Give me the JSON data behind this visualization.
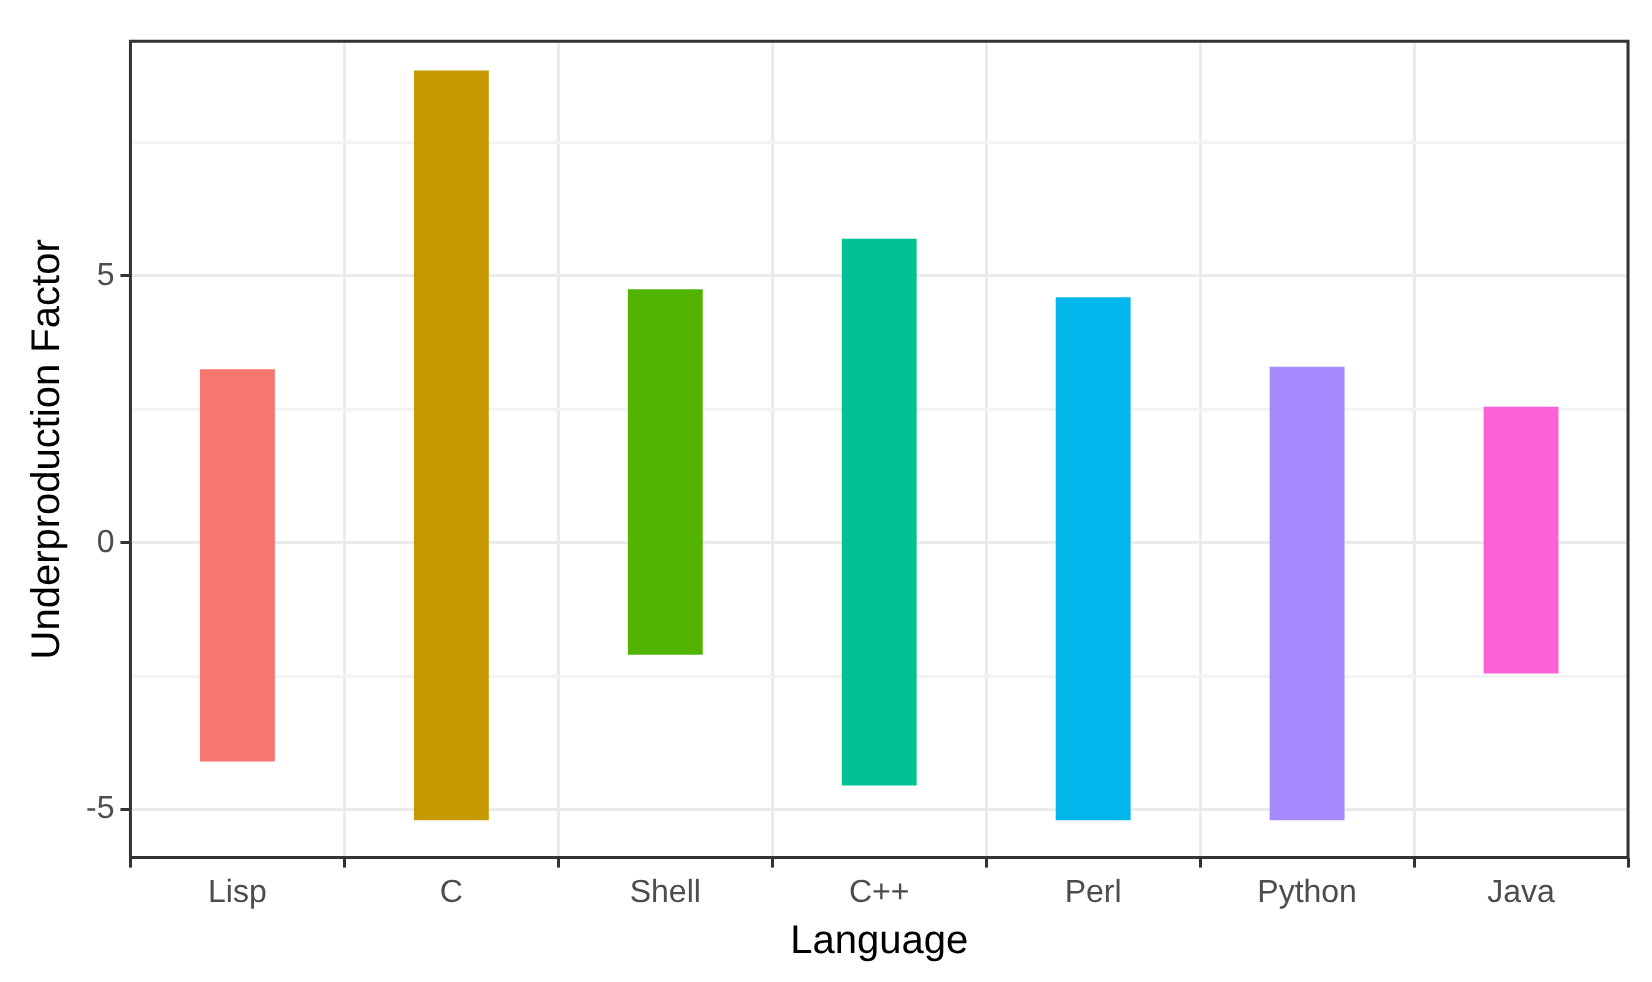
{
  "chart_data": {
    "type": "bar",
    "xlabel": "Language",
    "ylabel": "Underproduction Factor",
    "categories": [
      "Lisp",
      "C",
      "Shell",
      "C++",
      "Perl",
      "Python",
      "Java"
    ],
    "base": [
      -4.1,
      -5.2,
      -2.1,
      -4.55,
      -5.2,
      -5.2,
      -2.45
    ],
    "values": [
      7.35,
      14.05,
      6.85,
      10.25,
      9.8,
      8.5,
      5.0
    ],
    "colors": [
      "#f8766d",
      "#c49a00",
      "#53b400",
      "#00c094",
      "#00b6eb",
      "#a58aff",
      "#fb61d7"
    ],
    "ylim": [
      -5.9,
      9.4
    ],
    "yticks": [
      -5,
      {
        "value": -2.5,
        "label": null
      },
      0,
      {
        "value": 2.5,
        "label": null
      },
      5,
      {
        "value": 7.5,
        "label": null
      }
    ],
    "grid": true
  }
}
